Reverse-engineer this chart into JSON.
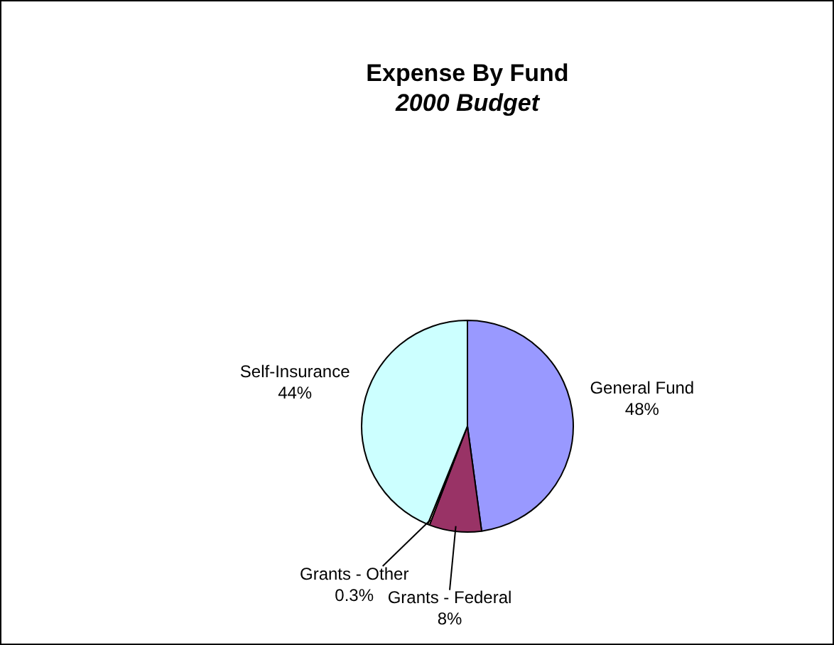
{
  "chart_data": {
    "type": "pie",
    "title": "Expense By Fund",
    "subtitle": "2000 Budget",
    "categories": [
      "General Fund",
      "Grants - Federal",
      "Grants - Other",
      "Self-Insurance"
    ],
    "values": [
      48,
      8,
      0.3,
      44
    ],
    "value_labels": [
      "48%",
      "8%",
      "0.3%",
      "44%"
    ],
    "colors": [
      "#9999ff",
      "#993366",
      "#ffffcc",
      "#ccffff"
    ],
    "legend": false
  }
}
